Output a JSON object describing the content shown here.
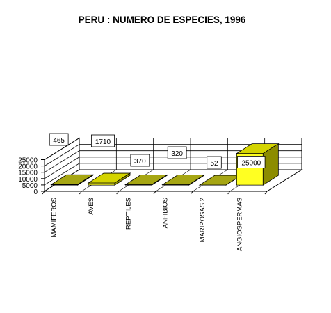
{
  "chart_data": {
    "type": "bar",
    "title": "PERU : NUMERO DE ESPECIES, 1996",
    "categories": [
      "MAMIFEROS",
      "AVES",
      "REPTILES",
      "ANFIBIOS",
      "MARIPOSAS  2",
      "ANGIOSPERMAS"
    ],
    "values": [
      465,
      1710,
      370,
      320,
      52,
      25000
    ],
    "data_labels": [
      "465",
      "1710",
      "370",
      "320",
      "52",
      "25000"
    ],
    "y_ticks": [
      "0",
      "5000",
      "10000",
      "15000",
      "20000",
      "25000"
    ],
    "ylim": [
      0,
      25000
    ],
    "style": "3d-column",
    "grid": true,
    "legend": "none",
    "colors": {
      "olive": {
        "front": "#c8c828",
        "top": "#a6a613",
        "side": "#6e6e09"
      },
      "yellow": {
        "front": "#ffff22",
        "top": "#d4d400",
        "side": "#8c8c00"
      },
      "grid": "#000000",
      "label_box_fill": "#ffffff"
    },
    "bar_color_keys": [
      "olive",
      "yellow",
      "olive",
      "olive",
      "olive",
      "yellow"
    ]
  }
}
